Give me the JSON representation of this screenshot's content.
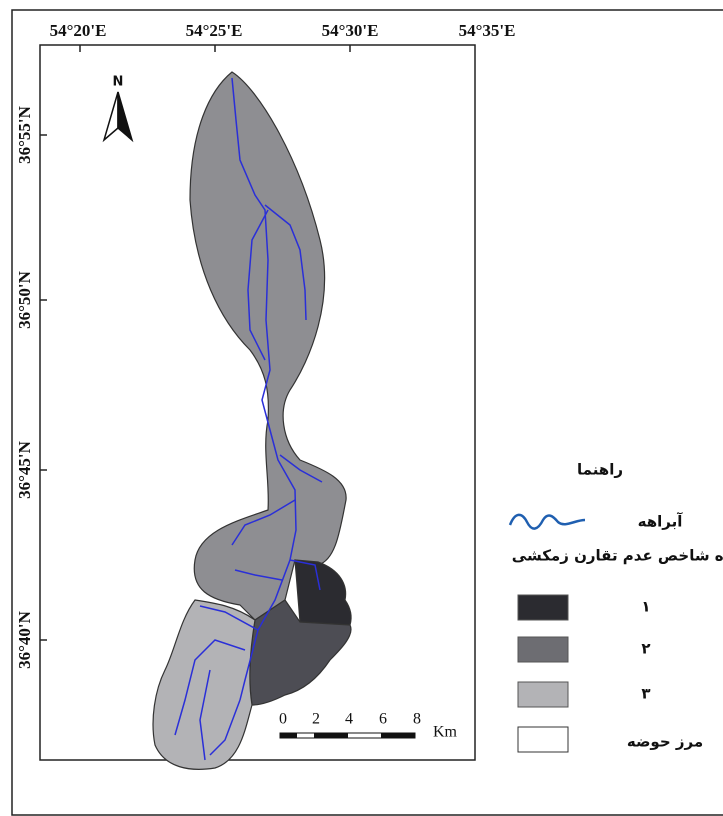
{
  "map": {
    "longitude_labels": [
      "54°20'E",
      "54°25'E",
      "54°30'E",
      "54°35'E"
    ],
    "latitude_labels": [
      "36°55'N",
      "36°50'N",
      "36°45'N",
      "36°40'N"
    ],
    "north_arrow": "N",
    "scale_bar": {
      "ticks": [
        "0",
        "2",
        "4",
        "6",
        "8"
      ],
      "unit": "Km"
    },
    "legend": {
      "title": "راهنما",
      "stream": "آبراهه",
      "class_title": "رده شاخص عدم تقارن زمکشی",
      "classes": [
        "۱",
        "۲",
        "۳"
      ],
      "boundary": "مرز حوضه"
    }
  }
}
